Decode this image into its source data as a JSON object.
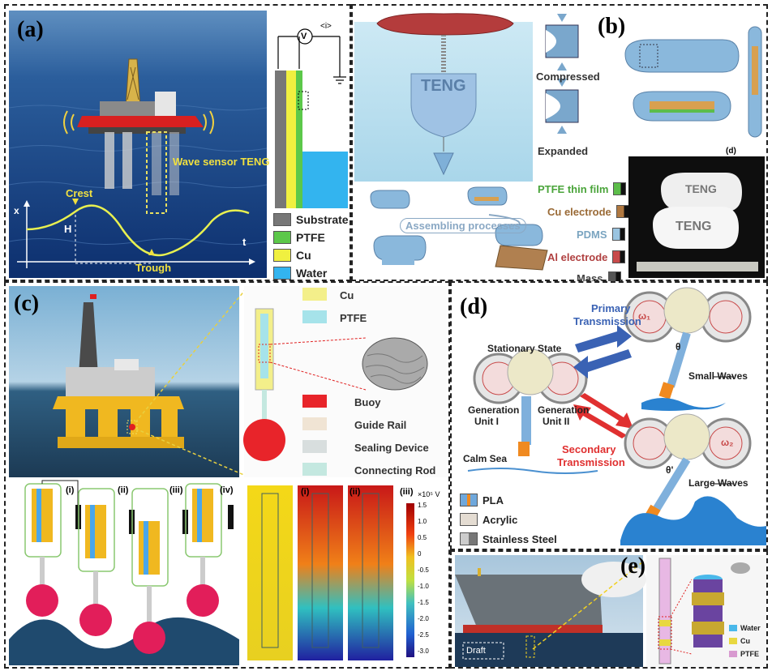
{
  "panel_a": {
    "label": "(a)",
    "wave_sensor_label": "Wave sensor TENG",
    "crest_label": "Crest",
    "trough_label": "Trough",
    "h_label": "H",
    "x_axis_label": "x",
    "t_axis_label": "t",
    "voltmeter_label": "V",
    "current_label": "<i>",
    "legend": [
      {
        "label": "Substrate",
        "color": "#777777"
      },
      {
        "label": "PTFE",
        "color": "#5cc84a"
      },
      {
        "label": "Cu",
        "color": "#f0f040"
      },
      {
        "label": "Water",
        "color": "#33b4ef"
      }
    ]
  },
  "panel_b": {
    "label": "(b)",
    "device_label": "TENG",
    "compressed_label": "Compressed",
    "expanded_label": "Expanded",
    "assembling_label": "Assembling processes",
    "photo_label": "(d)",
    "photo_text_1": "TENG",
    "photo_text_2": "TENG",
    "legend": [
      {
        "label": "PTFE thin film",
        "color": "#5cbd4a",
        "text_color": "#4aa43a"
      },
      {
        "label": "Cu electrode",
        "color": "#b07840",
        "text_color": "#9a6a36"
      },
      {
        "label": "PDMS",
        "color": "#9ac4e0",
        "text_color": "#7aa4c0"
      },
      {
        "label": "Al electrode",
        "color": "#c84a4a",
        "text_color": "#b04040"
      },
      {
        "label": "Mass",
        "color": "#555555",
        "text_color": "#444444"
      }
    ]
  },
  "panel_c": {
    "label": "(c)",
    "legend": [
      {
        "label": "Cu",
        "color": "#f3ef8a"
      },
      {
        "label": "PTFE",
        "color": "#a6e3ea"
      },
      {
        "label": "Buoy",
        "color": "#e8242a"
      },
      {
        "label": "Guide Rail",
        "color": "#f0e4d4"
      },
      {
        "label": "Sealing Device",
        "color": "#d8dede"
      },
      {
        "label": "Connecting Rod",
        "color": "#c4e8e0"
      }
    ],
    "stage_labels": [
      "(i)",
      "(ii)",
      "(iii)",
      "(iv)"
    ],
    "sim_labels": [
      "(i)",
      "(ii)",
      "(iii)"
    ],
    "colorbar_unit": "×10⁵ V",
    "colorbar_ticks": [
      "1.5",
      "1.0",
      "0.5",
      "0",
      "-0.5",
      "-1.0",
      "-1.5",
      "-2.0",
      "-2.5",
      "-3.0"
    ]
  },
  "panel_d": {
    "label": "(d)",
    "primary_label_1": "Primary",
    "primary_label_2": "Transmission",
    "secondary_label_1": "Secondary",
    "secondary_label_2": "Transmission",
    "stationary_label": "Stationary State",
    "gen_unit_1_a": "Generation",
    "gen_unit_1_b": "Unit I",
    "gen_unit_2_a": "Generation",
    "gen_unit_2_b": "Unit II",
    "calm_sea_label": "Calm Sea",
    "small_waves_label": "Small Waves",
    "large_waves_label": "Large Waves",
    "theta_label": "θ",
    "theta_prime_label": "θ'",
    "omega_1": "ω₁",
    "omega_2": "ω₂",
    "legend": [
      {
        "label": "PLA",
        "color": "#6fa8dc"
      },
      {
        "label": "Acrylic",
        "color": "#e4dcd2"
      },
      {
        "label": "Stainless Steel",
        "color": "#9a9a9a"
      }
    ]
  },
  "panel_e": {
    "label": "(e)",
    "draft_label": "Draft",
    "legend": [
      {
        "label": "Water",
        "color": "#4ab8ea"
      },
      {
        "label": "Cu",
        "color": "#e8d840"
      },
      {
        "label": "PTFE",
        "color": "#d89ad0"
      }
    ]
  }
}
